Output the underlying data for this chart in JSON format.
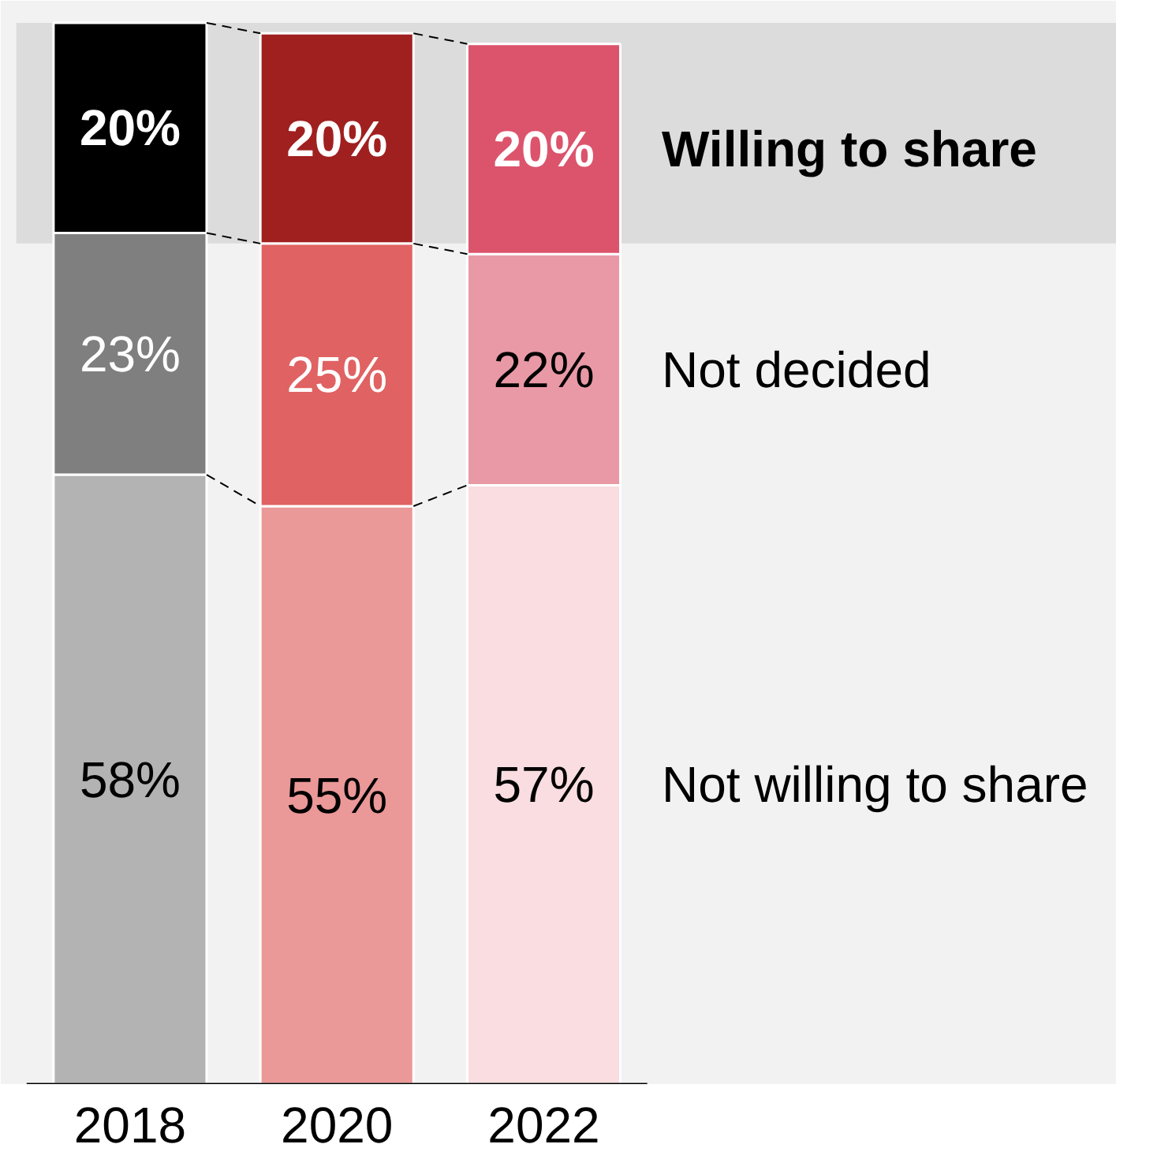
{
  "chart_data": {
    "type": "bar",
    "stacked": true,
    "categories": [
      "2018",
      "2020",
      "2022"
    ],
    "series": [
      {
        "name": "Not willing to share",
        "colors": [
          "#b3b3b3",
          "#eb9898",
          "#f9dde1"
        ],
        "values": [
          58,
          55,
          57
        ],
        "value_labels": [
          "58%",
          "55%",
          "57%"
        ]
      },
      {
        "name": "Not decided",
        "colors": [
          "#7f7f7f",
          "#e06262",
          "#e999a6"
        ],
        "values": [
          23,
          25,
          22
        ],
        "value_labels": [
          "23%",
          "25%",
          "22%"
        ]
      },
      {
        "name": "Willing to share",
        "colors": [
          "#000000",
          "#a02020",
          "#dc546c"
        ],
        "values": [
          20,
          20,
          20
        ],
        "value_labels": [
          "20%",
          "20%",
          "20%"
        ]
      }
    ],
    "bands": [
      {
        "axis": "y",
        "from": 80,
        "to": 101,
        "color": "#dcdcdc"
      }
    ],
    "grid": false
  }
}
